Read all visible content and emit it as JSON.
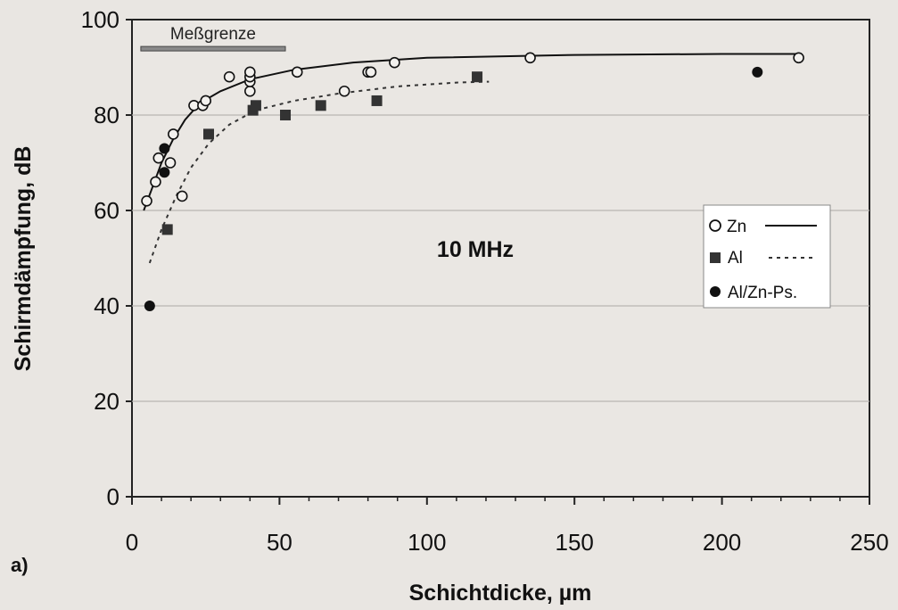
{
  "chart_data": {
    "type": "scatter",
    "panel_label": "a)",
    "xlabel": "Schichtdicke, µm",
    "ylabel": "Schirmdämpfung, dB",
    "xlim": [
      0,
      250
    ],
    "ylim": [
      0,
      100
    ],
    "xticks": [
      0,
      50,
      100,
      150,
      200,
      250
    ],
    "yticks": [
      0,
      20,
      40,
      60,
      80,
      100
    ],
    "grid": "horizontal",
    "annotation": "10 MHz",
    "measurement_limit": {
      "label": "Meßgrenze",
      "x": [
        3,
        52
      ],
      "y": 94
    },
    "legend_position": "right",
    "series": [
      {
        "name": "Zn",
        "marker": "open-circle",
        "line": "solid",
        "color": "#111111",
        "points": [
          [
            5,
            62
          ],
          [
            8,
            66
          ],
          [
            9,
            71
          ],
          [
            13,
            70
          ],
          [
            14,
            76
          ],
          [
            17,
            63
          ],
          [
            21,
            82
          ],
          [
            24,
            82
          ],
          [
            25,
            83
          ],
          [
            33,
            88
          ],
          [
            40,
            85
          ],
          [
            40,
            87
          ],
          [
            40,
            88
          ],
          [
            40,
            89
          ],
          [
            56,
            89
          ],
          [
            72,
            85
          ],
          [
            80,
            89
          ],
          [
            81,
            89
          ],
          [
            89,
            91
          ],
          [
            135,
            92
          ],
          [
            226,
            92
          ]
        ],
        "fit": [
          [
            4,
            60
          ],
          [
            7,
            65
          ],
          [
            10,
            70
          ],
          [
            14,
            75
          ],
          [
            18,
            79
          ],
          [
            23,
            82.5
          ],
          [
            30,
            85
          ],
          [
            40,
            87.5
          ],
          [
            55,
            89.5
          ],
          [
            75,
            91
          ],
          [
            100,
            92
          ],
          [
            150,
            92.6
          ],
          [
            200,
            92.8
          ],
          [
            226,
            92.8
          ]
        ]
      },
      {
        "name": "Al",
        "marker": "filled-square",
        "line": "dotted",
        "color": "#333333",
        "points": [
          [
            12,
            56
          ],
          [
            26,
            76
          ],
          [
            41,
            81
          ],
          [
            42,
            82
          ],
          [
            52,
            80
          ],
          [
            64,
            82
          ],
          [
            83,
            83
          ],
          [
            117,
            88
          ]
        ],
        "fit": [
          [
            6,
            49
          ],
          [
            10,
            56
          ],
          [
            15,
            63
          ],
          [
            20,
            69
          ],
          [
            26,
            74
          ],
          [
            33,
            78
          ],
          [
            42,
            81
          ],
          [
            55,
            83
          ],
          [
            70,
            84.5
          ],
          [
            90,
            86
          ],
          [
            110,
            86.8
          ],
          [
            121,
            87
          ]
        ]
      },
      {
        "name": "Al/Zn-Ps.",
        "marker": "filled-circle",
        "line": "none",
        "color": "#111111",
        "points": [
          [
            6,
            40
          ],
          [
            11,
            68
          ],
          [
            11,
            73
          ],
          [
            212,
            89
          ]
        ]
      }
    ]
  }
}
